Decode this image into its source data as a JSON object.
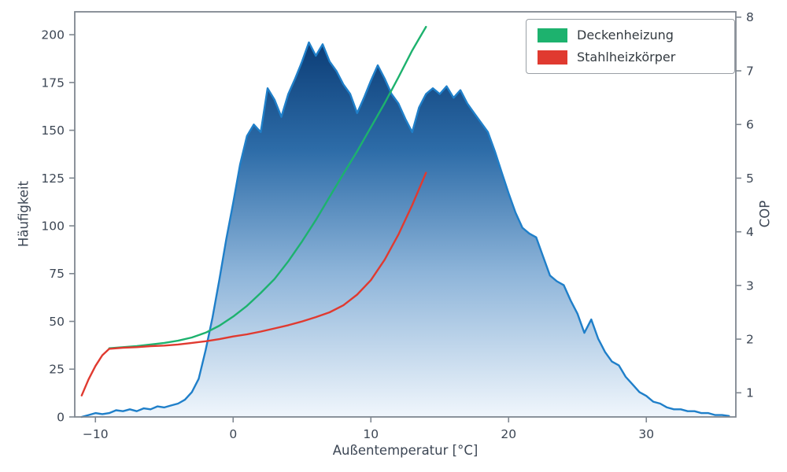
{
  "axes": {
    "x_label": "Außentemperatur [°C]",
    "y_left_label": "Häufigkeit",
    "y_right_label": "COP",
    "x_tick_labels": [
      "−10",
      "0",
      "10",
      "20",
      "30"
    ],
    "x_tick_values": [
      -10,
      0,
      10,
      20,
      30
    ],
    "y_left_tick_values": [
      0,
      25,
      50,
      75,
      100,
      125,
      150,
      175,
      200
    ],
    "y_right_tick_values": [
      1,
      2,
      3,
      4,
      5,
      6,
      7,
      8
    ]
  },
  "legend": {
    "entries": [
      {
        "label": "Deckenheizung",
        "color": "#1db26e"
      },
      {
        "label": "Stahlheizkörper",
        "color": "#e03a30"
      }
    ]
  },
  "colors": {
    "frequency_line": "#1f7fc9",
    "area_gradient_top": "#0a3a73",
    "area_gradient_mid1": "#2d6ca8",
    "area_gradient_mid2": "#8db4d9",
    "area_gradient_bottom": "#f0f6fc",
    "deckenheizung": "#1db26e",
    "stahlheizkoerper": "#e03a30",
    "spine": "#7f8790",
    "text": "#3c4654"
  },
  "chart_data": {
    "type": "area+line",
    "title": "",
    "xlabel": "Außentemperatur [°C]",
    "ylabel_left": "Häufigkeit",
    "ylabel_right": "COP",
    "x_range": [
      -11.5,
      36.5
    ],
    "y_left_range": [
      0,
      212
    ],
    "y_right_range": [
      0.55,
      8.1
    ],
    "grid": false,
    "legend_position": "upper right",
    "series": [
      {
        "name": "Häufigkeit",
        "type": "area",
        "axis": "left",
        "x_start": -11,
        "x_step": 0.5,
        "y": [
          0,
          1,
          2,
          1.5,
          2,
          3.5,
          3,
          4,
          3,
          4.5,
          4,
          5.5,
          5,
          6,
          7,
          9,
          13,
          20,
          35,
          52,
          72,
          93,
          112,
          132,
          147,
          153,
          149,
          172,
          166,
          157,
          169,
          177,
          186,
          196,
          189,
          195,
          186,
          181,
          174,
          169,
          159,
          167,
          176,
          184,
          177,
          169,
          164,
          156,
          149,
          162,
          169,
          172,
          169,
          173,
          167,
          171,
          164,
          159,
          154,
          149,
          139,
          128,
          117,
          107,
          99,
          96,
          94,
          84,
          74,
          71,
          69,
          61,
          54,
          44,
          51,
          41,
          34,
          29,
          27,
          21,
          17,
          13,
          11,
          8,
          7,
          5,
          4,
          4,
          3,
          3,
          2,
          2,
          1,
          1,
          0.5
        ]
      },
      {
        "name": "Deckenheizung",
        "type": "line",
        "axis": "right",
        "x": [
          -9,
          -8,
          -7,
          -6,
          -5,
          -4,
          -3,
          -2,
          -1,
          0,
          1,
          2,
          3,
          4,
          5,
          6,
          7,
          8,
          9,
          10,
          11,
          12,
          13,
          13.5,
          14
        ],
        "y": [
          1.83,
          1.85,
          1.87,
          1.9,
          1.93,
          1.97,
          2.03,
          2.12,
          2.25,
          2.42,
          2.62,
          2.86,
          3.12,
          3.45,
          3.82,
          4.22,
          4.65,
          5.08,
          5.5,
          5.95,
          6.4,
          6.88,
          7.38,
          7.6,
          7.82
        ]
      },
      {
        "name": "Stahlheizkörper",
        "type": "line",
        "axis": "right",
        "x": [
          -11,
          -10.5,
          -10,
          -9.5,
          -9,
          -8,
          -7,
          -6,
          -5,
          -4,
          -3,
          -2,
          -1,
          0,
          1,
          2,
          3,
          4,
          5,
          6,
          7,
          8,
          9,
          10,
          11,
          12,
          13,
          14
        ],
        "y": [
          0.95,
          1.25,
          1.5,
          1.7,
          1.82,
          1.84,
          1.85,
          1.87,
          1.88,
          1.9,
          1.93,
          1.96,
          2.0,
          2.05,
          2.09,
          2.14,
          2.2,
          2.26,
          2.33,
          2.41,
          2.5,
          2.63,
          2.83,
          3.1,
          3.48,
          3.95,
          4.5,
          5.1
        ]
      }
    ]
  }
}
